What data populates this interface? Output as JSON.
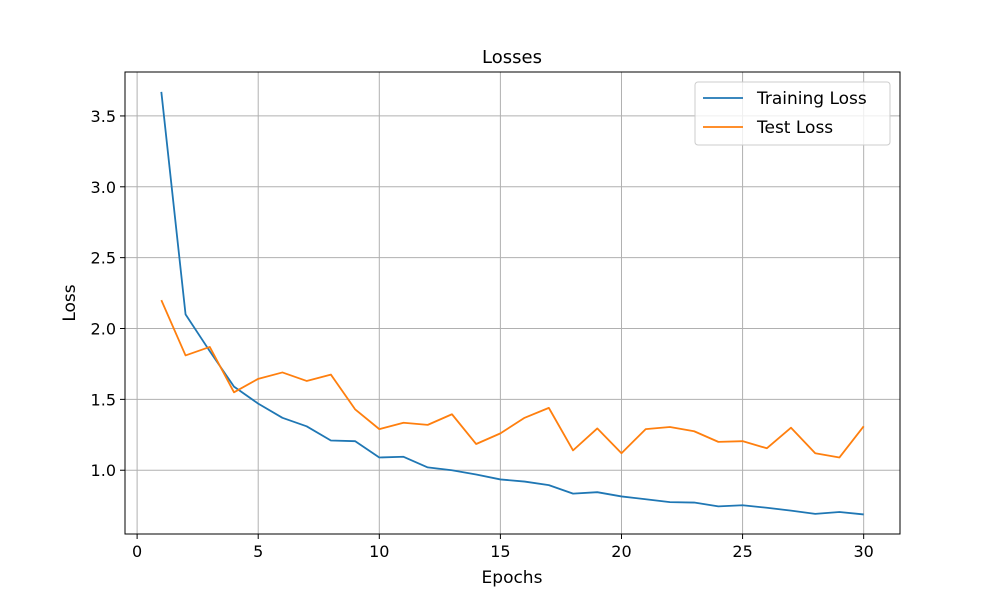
{
  "chart_data": {
    "type": "line",
    "title": "Losses",
    "xlabel": "Epochs",
    "ylabel": "Loss",
    "xlim": [
      -0.5,
      31.5
    ],
    "ylim": [
      0.55,
      3.81
    ],
    "xticks": [
      0,
      5,
      10,
      15,
      20,
      25,
      30
    ],
    "yticks": [
      1.0,
      1.5,
      2.0,
      2.5,
      3.0,
      3.5
    ],
    "xtick_labels": [
      "0",
      "5",
      "10",
      "15",
      "20",
      "25",
      "30"
    ],
    "ytick_labels": [
      "1.0",
      "1.5",
      "2.0",
      "2.5",
      "3.0",
      "3.5"
    ],
    "grid": true,
    "legend_position": "top-right",
    "x": [
      1,
      2,
      3,
      4,
      5,
      6,
      7,
      8,
      9,
      10,
      11,
      12,
      13,
      14,
      15,
      16,
      17,
      18,
      19,
      20,
      21,
      22,
      23,
      24,
      25,
      26,
      27,
      28,
      29,
      30
    ],
    "series": [
      {
        "name": "Training Loss",
        "color": "#1f77b4",
        "values": [
          3.67,
          2.1,
          1.84,
          1.59,
          1.47,
          1.37,
          1.31,
          1.21,
          1.205,
          1.09,
          1.095,
          1.02,
          1.0,
          0.97,
          0.935,
          0.92,
          0.895,
          0.835,
          0.845,
          0.815,
          0.795,
          0.775,
          0.772,
          0.745,
          0.753,
          0.735,
          0.715,
          0.692,
          0.705,
          0.688
        ]
      },
      {
        "name": "Test Loss",
        "color": "#ff7f0e",
        "values": [
          2.2,
          1.81,
          1.87,
          1.55,
          1.645,
          1.69,
          1.63,
          1.675,
          1.43,
          1.29,
          1.335,
          1.32,
          1.395,
          1.185,
          1.26,
          1.37,
          1.44,
          1.14,
          1.295,
          1.12,
          1.29,
          1.305,
          1.275,
          1.2,
          1.205,
          1.155,
          1.3,
          1.12,
          1.09,
          1.31
        ]
      }
    ]
  }
}
